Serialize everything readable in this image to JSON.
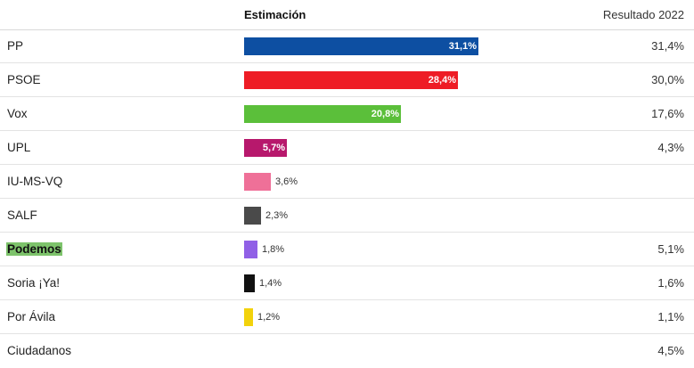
{
  "header": {
    "estimate_label": "Estimación",
    "result_label": "Resultado 2022"
  },
  "chart_data": {
    "type": "bar",
    "orientation": "horizontal",
    "title": "",
    "categories": [
      "PP",
      "PSOE",
      "Vox",
      "UPL",
      "IU-MS-VQ",
      "SALF",
      "Podemos",
      "Soria ¡Ya!",
      "Por Ávila",
      "Ciudadanos"
    ],
    "series": [
      {
        "name": "Estimación",
        "values": [
          31.1,
          28.4,
          20.8,
          5.7,
          3.6,
          2.3,
          1.8,
          1.4,
          1.2,
          null
        ],
        "labels": [
          "31,1%",
          "28,4%",
          "20,8%",
          "5,7%",
          "3,6%",
          "2,3%",
          "1,8%",
          "1,4%",
          "1,2%",
          ""
        ],
        "colors": [
          "#0d4fa2",
          "#ee1c25",
          "#5bbf3a",
          "#b7186c",
          "#ef7098",
          "#4a4a4a",
          "#9060e6",
          "#111111",
          "#f2d20c",
          null
        ]
      },
      {
        "name": "Resultado 2022",
        "values": [
          31.4,
          30.0,
          17.6,
          4.3,
          null,
          null,
          5.1,
          1.6,
          1.1,
          4.5
        ],
        "labels": [
          "31,4%",
          "30,0%",
          "17,6%",
          "4,3%",
          "",
          "",
          "5,1%",
          "1,6%",
          "1,1%",
          "4,5%"
        ]
      }
    ],
    "highlighted": "Podemos",
    "xlim": [
      0,
      31.1
    ]
  }
}
